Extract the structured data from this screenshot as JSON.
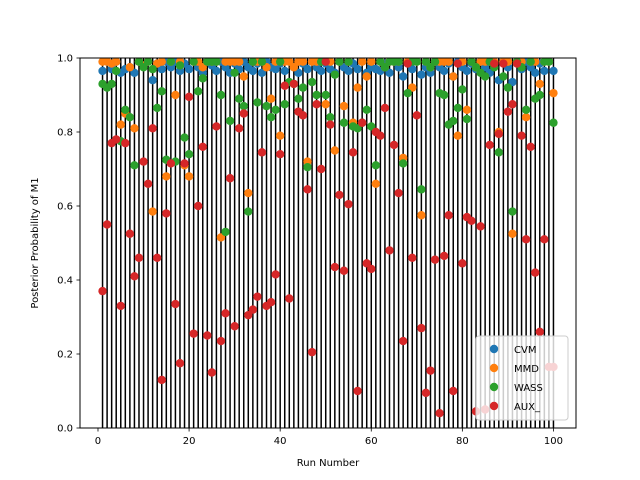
{
  "chart_data": {
    "type": "scatter",
    "xlabel": "Run Number",
    "ylabel": "Posterior Probability of M1",
    "xlim": [
      -3.95,
      104.95
    ],
    "ylim": [
      0.0,
      1.0
    ],
    "xticks": [
      0,
      20,
      40,
      60,
      80,
      100
    ],
    "yticks": [
      0.0,
      0.2,
      0.4,
      0.6,
      0.8,
      1.0
    ],
    "xtick_labels": [
      "0",
      "20",
      "40",
      "60",
      "80",
      "100"
    ],
    "ytick_labels": [
      "0.0",
      "0.2",
      "0.4",
      "0.6",
      "0.8",
      "1.0"
    ],
    "vertical_lines": {
      "from_x": 1,
      "to_x": 100,
      "color": "#000000",
      "y_range": [
        0.0,
        1.0
      ]
    },
    "legend_placement": "lower-right",
    "series": [
      {
        "name": "CVM",
        "color": "#1f77b4",
        "values": [
          0.965,
          0.99,
          0.97,
          0.99,
          0.96,
          0.97,
          0.975,
          0.96,
          0.99,
          0.98,
          0.99,
          0.94,
          0.985,
          0.97,
          0.99,
          0.975,
          0.99,
          0.965,
          0.985,
          0.97,
          0.99,
          0.975,
          0.96,
          0.99,
          0.98,
          0.965,
          0.99,
          0.975,
          0.96,
          0.985,
          0.97,
          0.99,
          0.975,
          0.965,
          0.985,
          0.96,
          0.99,
          0.975,
          0.97,
          0.985,
          0.965,
          0.99,
          0.975,
          0.96,
          0.985,
          0.97,
          0.99,
          0.975,
          0.965,
          0.985,
          0.97,
          0.96,
          0.99,
          0.975,
          0.965,
          0.985,
          0.97,
          0.99,
          0.96,
          0.975,
          0.97,
          0.965,
          0.985,
          0.96,
          0.99,
          0.975,
          0.95,
          0.985,
          0.97,
          0.99,
          0.955,
          0.975,
          0.96,
          0.99,
          0.975,
          0.965,
          0.985,
          0.95,
          0.99,
          0.975,
          0.965,
          0.985,
          0.97,
          0.99,
          0.975,
          0.96,
          0.985,
          0.94,
          0.99,
          0.975,
          0.935,
          0.985,
          0.97,
          0.99,
          0.975,
          0.96,
          0.985,
          0.965,
          0.99,
          0.965
        ]
      },
      {
        "name": "MMD",
        "color": "#ff7f0e",
        "values": [
          0.99,
          0.99,
          0.985,
          0.99,
          0.82,
          0.85,
          0.975,
          0.81,
          0.99,
          0.98,
          0.99,
          0.585,
          0.985,
          0.99,
          0.68,
          0.99,
          0.9,
          0.99,
          0.71,
          0.68,
          0.99,
          0.99,
          0.975,
          0.99,
          0.99,
          0.99,
          0.515,
          0.99,
          0.99,
          0.99,
          0.99,
          0.95,
          0.635,
          0.99,
          0.99,
          0.99,
          0.975,
          0.89,
          0.99,
          0.79,
          0.99,
          0.99,
          0.975,
          0.99,
          0.99,
          0.72,
          0.99,
          0.99,
          0.99,
          0.875,
          0.99,
          0.75,
          0.99,
          0.87,
          0.99,
          0.825,
          0.92,
          0.99,
          0.95,
          0.99,
          0.66,
          0.99,
          0.975,
          0.99,
          0.99,
          0.99,
          0.73,
          0.99,
          0.92,
          0.99,
          0.575,
          0.99,
          0.975,
          0.99,
          0.99,
          0.99,
          0.99,
          0.95,
          0.79,
          0.99,
          0.86,
          0.99,
          0.975,
          0.99,
          0.99,
          0.99,
          0.99,
          0.8,
          0.99,
          0.99,
          0.525,
          0.99,
          0.99,
          0.84,
          0.99,
          0.99,
          0.93,
          0.99,
          0.99,
          0.905
        ]
      },
      {
        "name": "WASS",
        "color": "#2ca02c",
        "values": [
          0.93,
          0.92,
          0.93,
          0.965,
          0.775,
          0.86,
          0.84,
          0.71,
          0.99,
          0.975,
          0.99,
          0.97,
          0.865,
          0.91,
          0.725,
          0.99,
          0.72,
          0.98,
          0.785,
          0.74,
          0.99,
          0.91,
          0.945,
          0.99,
          0.99,
          0.99,
          0.9,
          0.53,
          0.83,
          0.96,
          0.89,
          0.87,
          0.585,
          0.99,
          0.88,
          0.99,
          0.87,
          0.84,
          0.86,
          0.99,
          0.875,
          0.935,
          0.93,
          0.89,
          0.92,
          0.705,
          0.935,
          0.9,
          0.99,
          0.9,
          0.84,
          0.955,
          0.99,
          0.825,
          0.99,
          0.815,
          0.81,
          0.825,
          0.86,
          0.815,
          0.71,
          0.99,
          0.975,
          0.99,
          0.99,
          0.99,
          0.715,
          0.905,
          0.99,
          0.99,
          0.645,
          0.99,
          0.975,
          0.99,
          0.905,
          0.9,
          0.82,
          0.83,
          0.865,
          0.915,
          0.835,
          0.99,
          0.975,
          0.96,
          0.95,
          0.99,
          0.975,
          0.745,
          0.95,
          0.92,
          0.585,
          0.99,
          0.975,
          0.86,
          0.99,
          0.89,
          0.9,
          0.99,
          0.99,
          0.825
        ]
      },
      {
        "name": "AUX_",
        "color": "#d62728",
        "values": [
          0.37,
          0.55,
          0.77,
          0.78,
          0.33,
          0.77,
          0.525,
          0.41,
          0.46,
          0.72,
          0.66,
          0.81,
          0.46,
          0.13,
          0.58,
          0.715,
          0.335,
          0.175,
          0.715,
          0.895,
          0.255,
          0.6,
          0.76,
          0.25,
          0.15,
          0.815,
          0.235,
          0.31,
          0.675,
          0.275,
          0.81,
          0.85,
          0.305,
          0.32,
          0.355,
          0.745,
          0.33,
          0.34,
          0.415,
          0.74,
          0.925,
          0.35,
          0.93,
          0.855,
          0.845,
          0.645,
          0.205,
          0.875,
          0.7,
          0.99,
          0.82,
          0.435,
          0.63,
          0.425,
          0.605,
          0.745,
          0.1,
          0.825,
          0.445,
          0.43,
          0.8,
          0.79,
          0.865,
          0.48,
          0.765,
          0.635,
          0.235,
          0.985,
          0.46,
          0.845,
          0.27,
          0.095,
          0.155,
          0.455,
          0.04,
          0.465,
          0.575,
          0.1,
          0.985,
          0.445,
          0.57,
          0.56,
          0.045,
          0.545,
          0.05,
          0.765,
          0.985,
          0.795,
          0.985,
          0.855,
          0.875,
          0.985,
          0.79,
          0.51,
          0.76,
          0.42,
          0.26,
          0.51,
          0.165,
          0.165
        ]
      }
    ]
  }
}
